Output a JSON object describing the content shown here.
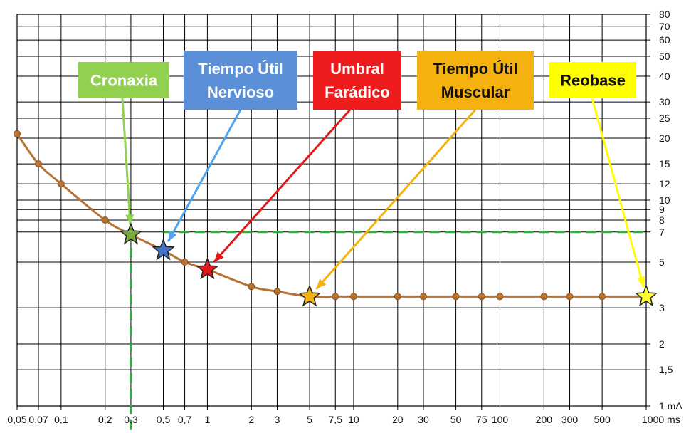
{
  "chart_data": {
    "type": "line",
    "title": "",
    "xlabel": "",
    "ylabel": "",
    "x_scale": "log",
    "y_scale": "log",
    "xlim": [
      0.05,
      1000
    ],
    "ylim": [
      1,
      80
    ],
    "grid": true,
    "x_ticks": [
      {
        "value": 0.05,
        "label": "0,05"
      },
      {
        "value": 0.07,
        "label": "0,07"
      },
      {
        "value": 0.1,
        "label": "0,1"
      },
      {
        "value": 0.2,
        "label": "0,2"
      },
      {
        "value": 0.3,
        "label": "0,3"
      },
      {
        "value": 0.5,
        "label": "0,5"
      },
      {
        "value": 0.7,
        "label": "0,7"
      },
      {
        "value": 1,
        "label": "1"
      },
      {
        "value": 2,
        "label": "2"
      },
      {
        "value": 3,
        "label": "3"
      },
      {
        "value": 5,
        "label": "5"
      },
      {
        "value": 7.5,
        "label": "7,5"
      },
      {
        "value": 10,
        "label": "10"
      },
      {
        "value": 20,
        "label": "20"
      },
      {
        "value": 30,
        "label": "30"
      },
      {
        "value": 50,
        "label": "50"
      },
      {
        "value": 75,
        "label": "75"
      },
      {
        "value": 100,
        "label": "100"
      },
      {
        "value": 200,
        "label": "200"
      },
      {
        "value": 300,
        "label": "300"
      },
      {
        "value": 500,
        "label": "500"
      },
      {
        "value": 1000,
        "label": "1000 ms"
      }
    ],
    "y_ticks": [
      {
        "value": 80,
        "label": "80"
      },
      {
        "value": 70,
        "label": "70"
      },
      {
        "value": 60,
        "label": "60"
      },
      {
        "value": 50,
        "label": "50"
      },
      {
        "value": 40,
        "label": "40"
      },
      {
        "value": 30,
        "label": "30"
      },
      {
        "value": 25,
        "label": "25"
      },
      {
        "value": 20,
        "label": "20"
      },
      {
        "value": 15,
        "label": "15"
      },
      {
        "value": 12,
        "label": "12"
      },
      {
        "value": 10,
        "label": "10"
      },
      {
        "value": 9,
        "label": "9"
      },
      {
        "value": 8,
        "label": "8"
      },
      {
        "value": 7,
        "label": "7"
      },
      {
        "value": 5,
        "label": "5"
      },
      {
        "value": 3,
        "label": "3"
      },
      {
        "value": 2,
        "label": "2"
      },
      {
        "value": 1.5,
        "label": "1,5"
      },
      {
        "value": 1,
        "label": "1 mA"
      }
    ],
    "series": [
      {
        "color": "#b87333",
        "points": [
          {
            "x": 0.05,
            "y": 21
          },
          {
            "x": 0.07,
            "y": 15
          },
          {
            "x": 0.1,
            "y": 12
          },
          {
            "x": 0.2,
            "y": 8
          },
          {
            "x": 0.3,
            "y": 6.8
          },
          {
            "x": 0.5,
            "y": 5.7
          },
          {
            "x": 0.7,
            "y": 5
          },
          {
            "x": 1,
            "y": 4.6
          },
          {
            "x": 2,
            "y": 3.8
          },
          {
            "x": 3,
            "y": 3.6
          },
          {
            "x": 5,
            "y": 3.4
          },
          {
            "x": 7.5,
            "y": 3.4
          },
          {
            "x": 10,
            "y": 3.4
          },
          {
            "x": 20,
            "y": 3.4
          },
          {
            "x": 30,
            "y": 3.4
          },
          {
            "x": 50,
            "y": 3.4
          },
          {
            "x": 75,
            "y": 3.4
          },
          {
            "x": 100,
            "y": 3.4
          },
          {
            "x": 200,
            "y": 3.4
          },
          {
            "x": 300,
            "y": 3.4
          },
          {
            "x": 500,
            "y": 3.4
          },
          {
            "x": 1000,
            "y": 3.4
          }
        ]
      }
    ],
    "reference_lines": {
      "color": "#3aa845",
      "horizontal": {
        "y": 7,
        "x_from": 0.5,
        "x_to": 1000
      },
      "vertical": {
        "x": 0.3,
        "y_from": 7,
        "y_to": 1
      }
    },
    "annotations": [
      {
        "text": [
          "Cronaxia"
        ],
        "bg": "#92d050",
        "fg": "#ffffff",
        "arrow": "#92d050",
        "star_fill": "#76a83e",
        "target": {
          "x": 0.3,
          "y": 6.8
        }
      },
      {
        "text": [
          "Tiempo Útil",
          "Nervioso"
        ],
        "bg": "#5b8fd8",
        "fg": "#ffffff",
        "arrow": "#4fa3f0",
        "star_fill": "#4472c4",
        "target": {
          "x": 0.5,
          "y": 5.7
        }
      },
      {
        "text": [
          "Umbral",
          "Farádico"
        ],
        "bg": "#ee1c1c",
        "fg": "#ffffff",
        "arrow": "#e31919",
        "star_fill": "#e31919",
        "target": {
          "x": 1,
          "y": 4.6
        }
      },
      {
        "text": [
          "Tiempo Útil",
          "Muscular"
        ],
        "bg": "#f5b20f",
        "fg": "#111111",
        "arrow": "#f5b20f",
        "star_fill": "#f5b20f",
        "target": {
          "x": 5,
          "y": 3.4
        }
      },
      {
        "text": [
          "Reobase"
        ],
        "bg": "#ffff00",
        "fg": "#111111",
        "arrow": "#ffff00",
        "star_fill": "#ffff33",
        "target": {
          "x": 1000,
          "y": 3.4
        }
      }
    ]
  }
}
